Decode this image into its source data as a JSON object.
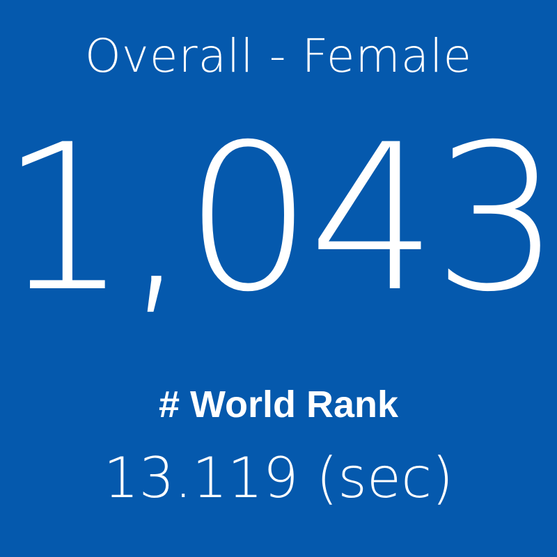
{
  "card": {
    "title": "Overall - Female",
    "rank": "1,043",
    "label": "# World Rank",
    "time": "13.119 (sec)"
  }
}
